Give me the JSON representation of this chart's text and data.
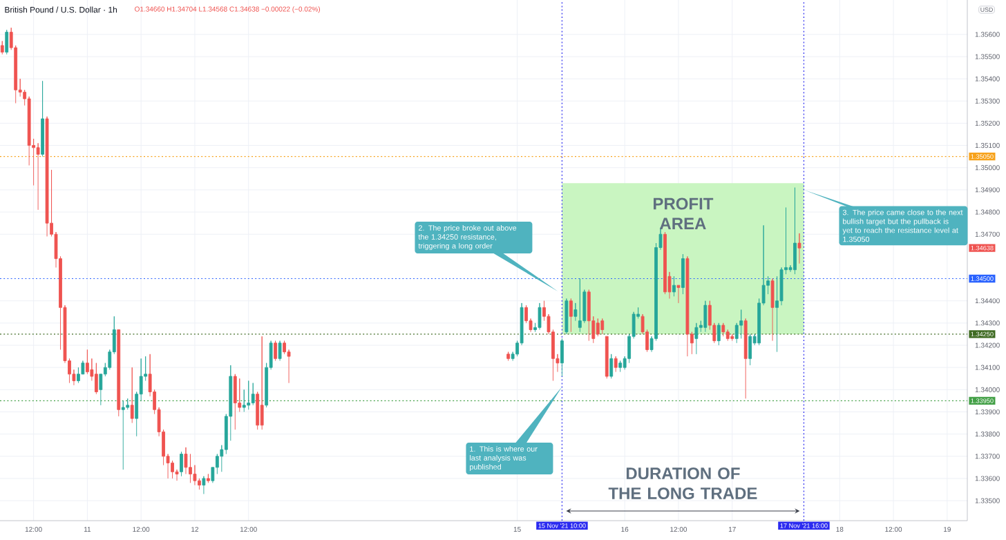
{
  "chart_data": {
    "type": "candlestick",
    "title": "British Pound / U.S. Dollar · 1h",
    "subtitle": "O1.34660 H1.34704 L1.34568 C1.34638 −0.00022 (−0.02%)",
    "x": [
      "2021-11-10T05:00",
      "2021-11-10T06:00",
      "2021-11-10T07:00",
      "2021-11-10T08:00",
      "2021-11-10T09:00",
      "2021-11-10T10:00",
      "2021-11-10T11:00",
      "2021-11-10T12:00",
      "2021-11-10T13:00",
      "2021-11-10T14:00",
      "2021-11-10T15:00",
      "2021-11-10T16:00",
      "2021-11-10T17:00",
      "2021-11-10T18:00",
      "2021-11-10T19:00",
      "2021-11-10T20:00",
      "2021-11-10T21:00",
      "2021-11-10T22:00",
      "2021-11-10T23:00",
      "2021-11-11T00:00",
      "2021-11-11T01:00",
      "2021-11-11T02:00",
      "2021-11-11T03:00",
      "2021-11-11T04:00",
      "2021-11-11T05:00",
      "2021-11-11T06:00",
      "2021-11-11T07:00",
      "2021-11-11T08:00",
      "2021-11-11T09:00",
      "2021-11-11T10:00",
      "2021-11-11T11:00",
      "2021-11-11T12:00",
      "2021-11-11T13:00",
      "2021-11-11T14:00",
      "2021-11-11T15:00",
      "2021-11-11T16:00",
      "2021-11-11T17:00",
      "2021-11-11T18:00",
      "2021-11-11T19:00",
      "2021-11-11T20:00",
      "2021-11-11T21:00",
      "2021-11-11T22:00",
      "2021-11-11T23:00",
      "2021-11-12T00:00",
      "2021-11-12T01:00",
      "2021-11-12T02:00",
      "2021-11-12T03:00",
      "2021-11-12T04:00",
      "2021-11-12T05:00",
      "2021-11-12T06:00",
      "2021-11-12T07:00",
      "2021-11-12T08:00",
      "2021-11-12T09:00",
      "2021-11-12T10:00",
      "2021-11-12T11:00",
      "2021-11-12T12:00",
      "2021-11-12T13:00",
      "2021-11-12T14:00",
      "2021-11-12T15:00",
      "2021-11-12T16:00",
      "2021-11-12T17:00",
      "2021-11-12T18:00",
      "2021-11-12T19:00",
      "2021-11-12T20:00",
      "2021-11-12T21:00",
      "2021-11-14T22:00",
      "2021-11-14T23:00",
      "2021-11-15T00:00",
      "2021-11-15T01:00",
      "2021-11-15T02:00",
      "2021-11-15T03:00",
      "2021-11-15T04:00",
      "2021-11-15T05:00",
      "2021-11-15T06:00",
      "2021-11-15T07:00",
      "2021-11-15T08:00",
      "2021-11-15T09:00",
      "2021-11-15T10:00",
      "2021-11-15T11:00",
      "2021-11-15T12:00",
      "2021-11-15T13:00",
      "2021-11-15T14:00",
      "2021-11-15T15:00",
      "2021-11-15T16:00",
      "2021-11-15T17:00",
      "2021-11-15T18:00",
      "2021-11-15T19:00",
      "2021-11-15T20:00",
      "2021-11-15T21:00",
      "2021-11-15T22:00",
      "2021-11-15T23:00",
      "2021-11-16T00:00",
      "2021-11-16T01:00",
      "2021-11-16T02:00",
      "2021-11-16T03:00",
      "2021-11-16T04:00",
      "2021-11-16T05:00",
      "2021-11-16T06:00",
      "2021-11-16T07:00",
      "2021-11-16T08:00",
      "2021-11-16T09:00",
      "2021-11-16T10:00",
      "2021-11-16T11:00",
      "2021-11-16T12:00",
      "2021-11-16T13:00",
      "2021-11-16T14:00",
      "2021-11-16T15:00",
      "2021-11-16T16:00",
      "2021-11-16T17:00",
      "2021-11-16T18:00",
      "2021-11-16T19:00",
      "2021-11-16T20:00",
      "2021-11-16T21:00",
      "2021-11-16T22:00",
      "2021-11-16T23:00",
      "2021-11-17T00:00",
      "2021-11-17T01:00",
      "2021-11-17T02:00",
      "2021-11-17T03:00",
      "2021-11-17T04:00",
      "2021-11-17T05:00",
      "2021-11-17T06:00",
      "2021-11-17T07:00",
      "2021-11-17T08:00",
      "2021-11-17T09:00",
      "2021-11-17T10:00",
      "2021-11-17T11:00",
      "2021-11-17T12:00",
      "2021-11-17T13:00",
      "2021-11-17T14:00",
      "2021-11-17T15:00"
    ],
    "ohlc": [
      [
        1.3555,
        1.3557,
        1.3551,
        1.3552
      ],
      [
        1.3552,
        1.3562,
        1.3551,
        1.3561
      ],
      [
        1.3561,
        1.3563,
        1.3553,
        1.3554
      ],
      [
        1.3554,
        1.3555,
        1.3529,
        1.3535
      ],
      [
        1.3535,
        1.354,
        1.3532,
        1.3534
      ],
      [
        1.3534,
        1.3535,
        1.3528,
        1.3531
      ],
      [
        1.3531,
        1.3532,
        1.3501,
        1.351
      ],
      [
        1.351,
        1.3513,
        1.3492,
        1.3509
      ],
      [
        1.3509,
        1.3511,
        1.3481,
        1.3506
      ],
      [
        1.3506,
        1.3539,
        1.3505,
        1.3522
      ],
      [
        1.3522,
        1.3523,
        1.3469,
        1.3475
      ],
      [
        1.3475,
        1.3499,
        1.3469,
        1.347
      ],
      [
        1.347,
        1.3471,
        1.3455,
        1.3459
      ],
      [
        1.3459,
        1.346,
        1.3418,
        1.3437
      ],
      [
        1.3437,
        1.3438,
        1.3412,
        1.3413
      ],
      [
        1.3413,
        1.3414,
        1.3403,
        1.3407
      ],
      [
        1.3407,
        1.3409,
        1.3402,
        1.3404
      ],
      [
        1.3404,
        1.341,
        1.3403,
        1.3407
      ],
      [
        1.3407,
        1.3413,
        1.3407,
        1.3412
      ],
      [
        1.3412,
        1.3418,
        1.3407,
        1.3408
      ],
      [
        1.3409,
        1.3414,
        1.3404,
        1.3406
      ],
      [
        1.3407,
        1.3412,
        1.3398,
        1.3399
      ],
      [
        1.34,
        1.3407,
        1.3393,
        1.3407
      ],
      [
        1.3407,
        1.3412,
        1.3406,
        1.341
      ],
      [
        1.341,
        1.3418,
        1.3409,
        1.3417
      ],
      [
        1.3417,
        1.3433,
        1.3416,
        1.3427
      ],
      [
        1.3427,
        1.3427,
        1.3388,
        1.3391
      ],
      [
        1.3391,
        1.3395,
        1.3364,
        1.3392
      ],
      [
        1.3392,
        1.3396,
        1.3391,
        1.3393
      ],
      [
        1.3393,
        1.341,
        1.3385,
        1.3387
      ],
      [
        1.3387,
        1.3399,
        1.3379,
        1.3398
      ],
      [
        1.3398,
        1.3414,
        1.3395,
        1.3406
      ],
      [
        1.3406,
        1.3415,
        1.3404,
        1.3407
      ],
      [
        1.3407,
        1.3416,
        1.3397,
        1.3399
      ],
      [
        1.3399,
        1.34,
        1.3389,
        1.3391
      ],
      [
        1.3391,
        1.3392,
        1.3379,
        1.3381
      ],
      [
        1.3381,
        1.3382,
        1.3366,
        1.337
      ],
      [
        1.337,
        1.3371,
        1.336,
        1.3367
      ],
      [
        1.3367,
        1.3368,
        1.336,
        1.3363
      ],
      [
        1.3363,
        1.3364,
        1.3359,
        1.3362
      ],
      [
        1.3363,
        1.3372,
        1.3361,
        1.3371
      ],
      [
        1.3371,
        1.3374,
        1.3362,
        1.3365
      ],
      [
        1.3365,
        1.3371,
        1.3358,
        1.3362
      ],
      [
        1.3362,
        1.3366,
        1.3357,
        1.3359
      ],
      [
        1.3359,
        1.336,
        1.3355,
        1.3357
      ],
      [
        1.3357,
        1.3361,
        1.3353,
        1.336
      ],
      [
        1.336,
        1.3362,
        1.3358,
        1.3359
      ],
      [
        1.3359,
        1.3365,
        1.3358,
        1.3365
      ],
      [
        1.3365,
        1.3371,
        1.3362,
        1.337
      ],
      [
        1.337,
        1.3375,
        1.3363,
        1.3373
      ],
      [
        1.3373,
        1.3389,
        1.3371,
        1.3388
      ],
      [
        1.3388,
        1.3411,
        1.3377,
        1.3406
      ],
      [
        1.3406,
        1.3407,
        1.3382,
        1.3394
      ],
      [
        1.3394,
        1.3405,
        1.339,
        1.3392
      ],
      [
        1.3392,
        1.34,
        1.339,
        1.3393
      ],
      [
        1.3393,
        1.3404,
        1.3391,
        1.3394
      ],
      [
        1.3394,
        1.3403,
        1.3393,
        1.3398
      ],
      [
        1.3398,
        1.3399,
        1.3382,
        1.3384
      ],
      [
        1.3393,
        1.3424,
        1.3382,
        1.3384
      ],
      [
        1.3393,
        1.3412,
        1.3392,
        1.341
      ],
      [
        1.341,
        1.3422,
        1.3409,
        1.3421
      ],
      [
        1.3421,
        1.3422,
        1.3413,
        1.3414
      ],
      [
        1.3414,
        1.3422,
        1.3413,
        1.3421
      ],
      [
        1.3421,
        1.3422,
        1.3416,
        1.3417
      ],
      [
        1.3417,
        1.3418,
        1.3403,
        1.3415
      ],
      [
        1.3416,
        1.3417,
        1.3413,
        1.3414
      ],
      [
        1.3414,
        1.3417,
        1.3413,
        1.3416
      ],
      [
        1.3416,
        1.3422,
        1.3415,
        1.3421
      ],
      [
        1.3421,
        1.3439,
        1.342,
        1.3437
      ],
      [
        1.3437,
        1.3438,
        1.343,
        1.3431
      ],
      [
        1.3431,
        1.3432,
        1.3426,
        1.3427
      ],
      [
        1.3427,
        1.343,
        1.3426,
        1.3428
      ],
      [
        1.3428,
        1.3439,
        1.3427,
        1.3437
      ],
      [
        1.3437,
        1.344,
        1.3431,
        1.3433
      ],
      [
        1.3433,
        1.3434,
        1.3425,
        1.3426
      ],
      [
        1.3426,
        1.3427,
        1.3404,
        1.3414
      ],
      [
        1.3414,
        1.3416,
        1.3408,
        1.3412
      ],
      [
        1.3412,
        1.3423,
        1.3406,
        1.3422
      ],
      [
        1.3426,
        1.3441,
        1.3425,
        1.344
      ],
      [
        1.344,
        1.3441,
        1.3426,
        1.3433
      ],
      [
        1.3433,
        1.3439,
        1.3431,
        1.3436
      ],
      [
        1.3428,
        1.345,
        1.3426,
        1.3431
      ],
      [
        1.3431,
        1.3445,
        1.343,
        1.3444
      ],
      [
        1.3444,
        1.3445,
        1.3422,
        1.3431
      ],
      [
        1.3431,
        1.3433,
        1.3421,
        1.3423
      ],
      [
        1.343,
        1.3432,
        1.3424,
        1.3425
      ],
      [
        1.3431,
        1.3432,
        1.3425,
        1.3427
      ],
      [
        1.3424,
        1.3424,
        1.3405,
        1.3406
      ],
      [
        1.3406,
        1.3416,
        1.3405,
        1.3414
      ],
      [
        1.3414,
        1.3415,
        1.3408,
        1.341
      ],
      [
        1.341,
        1.3413,
        1.3408,
        1.3412
      ],
      [
        1.341,
        1.3415,
        1.3409,
        1.3414
      ],
      [
        1.3414,
        1.3425,
        1.3412,
        1.3424
      ],
      [
        1.3424,
        1.3435,
        1.3423,
        1.3434
      ],
      [
        1.3433,
        1.3437,
        1.3432,
        1.3434
      ],
      [
        1.3433,
        1.3434,
        1.3425,
        1.3426
      ],
      [
        1.3426,
        1.3427,
        1.3417,
        1.3418
      ],
      [
        1.3418,
        1.3424,
        1.3417,
        1.3423
      ],
      [
        1.3423,
        1.3466,
        1.3422,
        1.3464
      ],
      [
        1.3464,
        1.3473,
        1.3463,
        1.347
      ],
      [
        1.347,
        1.3471,
        1.3443,
        1.3444
      ],
      [
        1.3451,
        1.3453,
        1.3441,
        1.3444
      ],
      [
        1.3444,
        1.3451,
        1.3442,
        1.3447
      ],
      [
        1.3447,
        1.3447,
        1.3439,
        1.3446
      ],
      [
        1.3446,
        1.3461,
        1.3443,
        1.3459
      ],
      [
        1.3459,
        1.346,
        1.3415,
        1.3425
      ],
      [
        1.3425,
        1.3426,
        1.3416,
        1.3421
      ],
      [
        1.3423,
        1.343,
        1.3416,
        1.3428
      ],
      [
        1.3428,
        1.3431,
        1.3426,
        1.3429
      ],
      [
        1.3428,
        1.344,
        1.3426,
        1.3438
      ],
      [
        1.3438,
        1.344,
        1.3427,
        1.3429
      ],
      [
        1.3429,
        1.343,
        1.3421,
        1.3422
      ],
      [
        1.3422,
        1.343,
        1.342,
        1.3429
      ],
      [
        1.3429,
        1.343,
        1.3424,
        1.3426
      ],
      [
        1.3426,
        1.3427,
        1.3422,
        1.3423
      ],
      [
        1.3424,
        1.3425,
        1.3422,
        1.3423
      ],
      [
        1.3423,
        1.343,
        1.3421,
        1.3429
      ],
      [
        1.3429,
        1.3436,
        1.3423,
        1.3431
      ],
      [
        1.3431,
        1.3432,
        1.3396,
        1.3414
      ],
      [
        1.3414,
        1.3425,
        1.3411,
        1.3424
      ],
      [
        1.3421,
        1.3425,
        1.342,
        1.3424
      ],
      [
        1.3421,
        1.3441,
        1.342,
        1.3439
      ],
      [
        1.3439,
        1.3474,
        1.3438,
        1.3447
      ],
      [
        1.3447,
        1.3451,
        1.3443,
        1.3449
      ],
      [
        1.3449,
        1.345,
        1.3422,
        1.3437
      ],
      [
        1.3437,
        1.3451,
        1.3417,
        1.344
      ],
      [
        1.344,
        1.3455,
        1.3438,
        1.3454
      ],
      [
        1.3454,
        1.3482,
        1.3452,
        1.3455
      ],
      [
        1.3454,
        1.3456,
        1.3453,
        1.3455
      ],
      [
        1.3454,
        1.3491,
        1.3452,
        1.3466
      ],
      [
        1.3466,
        1.34704,
        1.34568,
        1.34638
      ]
    ],
    "colors": [
      "#ef5350",
      "#26a69a",
      "#ef5350",
      "#ef5350",
      "#ef5350",
      "#ef5350",
      "#ef5350",
      "#ef5350",
      "#ef5350",
      "#26a69a",
      "#ef5350",
      "#ef5350",
      "#ef5350",
      "#ef5350",
      "#ef5350",
      "#ef5350",
      "#ef5350",
      "#26a69a",
      "#26a69a",
      "#ef5350",
      "#ef5350",
      "#ef5350",
      "#26a69a",
      "#26a69a",
      "#26a69a",
      "#26a69a",
      "#ef5350",
      "#26a69a",
      "#26a69a",
      "#ef5350",
      "#26a69a",
      "#26a69a",
      "#26a69a",
      "#ef5350",
      "#ef5350",
      "#ef5350",
      "#ef5350",
      "#ef5350",
      "#ef5350",
      "#ef5350",
      "#26a69a",
      "#ef5350",
      "#ef5350",
      "#ef5350",
      "#ef5350",
      "#26a69a",
      "#ef5350",
      "#26a69a",
      "#26a69a",
      "#26a69a",
      "#26a69a",
      "#26a69a",
      "#ef5350",
      "#ef5350",
      "#26a69a",
      "#26a69a",
      "#26a69a",
      "#ef5350",
      "#ef5350",
      "#26a69a",
      "#26a69a",
      "#ef5350",
      "#26a69a",
      "#ef5350",
      "#ef5350",
      "#ef5350",
      "#26a69a",
      "#26a69a",
      "#26a69a",
      "#ef5350",
      "#ef5350",
      "#26a69a",
      "#26a69a",
      "#ef5350",
      "#ef5350",
      "#ef5350",
      "#ef5350",
      "#26a69a",
      "#26a69a",
      "#ef5350",
      "#26a69a",
      "#26a69a",
      "#26a69a",
      "#ef5350",
      "#ef5350",
      "#ef5350",
      "#ef5350",
      "#ef5350",
      "#26a69a",
      "#ef5350",
      "#26a69a",
      "#26a69a",
      "#26a69a",
      "#26a69a",
      "#26a69a",
      "#ef5350",
      "#ef5350",
      "#26a69a",
      "#26a69a",
      "#26a69a",
      "#ef5350",
      "#ef5350",
      "#26a69a",
      "#ef5350",
      "#26a69a",
      "#ef5350",
      "#ef5350",
      "#26a69a",
      "#26a69a",
      "#26a69a",
      "#ef5350",
      "#ef5350",
      "#26a69a",
      "#ef5350",
      "#ef5350",
      "#ef5350",
      "#26a69a",
      "#26a69a",
      "#ef5350",
      "#26a69a",
      "#26a69a",
      "#26a69a",
      "#26a69a",
      "#26a69a",
      "#ef5350",
      "#26a69a",
      "#26a69a",
      "#26a69a",
      "#26a69a",
      "#26a69a",
      "#ef5350"
    ],
    "xlim": [
      "2021-11-10T04:30",
      "2021-11-19T04:30"
    ],
    "ylim": [
      1.3341,
      1.35755
    ],
    "xticks": [
      {
        "value": "2021-11-10T12:00",
        "label": "12:00"
      },
      {
        "value": "2021-11-11T00:00",
        "label": "11"
      },
      {
        "value": "2021-11-11T12:00",
        "label": "12:00"
      },
      {
        "value": "2021-11-12T00:00",
        "label": "12"
      },
      {
        "value": "2021-11-12T12:00",
        "label": "12:00"
      },
      {
        "value": "2021-11-15T00:00",
        "label": "15"
      },
      {
        "value": "2021-11-16T00:00",
        "label": "16"
      },
      {
        "value": "2021-11-16T12:00",
        "label": "12:00"
      },
      {
        "value": "2021-11-17T00:00",
        "label": "17"
      },
      {
        "value": "2021-11-18T00:00",
        "label": "18"
      },
      {
        "value": "2021-11-18T12:00",
        "label": "12:00"
      },
      {
        "value": "2021-11-19T00:00",
        "label": "19"
      }
    ],
    "yticks": [
      {
        "value": 1.335,
        "label": "1.33500"
      },
      {
        "value": 1.336,
        "label": "1.33600"
      },
      {
        "value": 1.337,
        "label": "1.33700"
      },
      {
        "value": 1.338,
        "label": "1.33800"
      },
      {
        "value": 1.339,
        "label": "1.33900"
      },
      {
        "value": 1.34,
        "label": "1.34000"
      },
      {
        "value": 1.341,
        "label": "1.34100"
      },
      {
        "value": 1.342,
        "label": "1.34200"
      },
      {
        "value": 1.343,
        "label": "1.34300"
      },
      {
        "value": 1.344,
        "label": "1.34400"
      },
      {
        "value": 1.347,
        "label": "1.34700"
      },
      {
        "value": 1.348,
        "label": "1.34800"
      },
      {
        "value": 1.349,
        "label": "1.34900"
      },
      {
        "value": 1.35,
        "label": "1.35000"
      },
      {
        "value": 1.351,
        "label": "1.35100"
      },
      {
        "value": 1.352,
        "label": "1.35200"
      },
      {
        "value": 1.353,
        "label": "1.35300"
      },
      {
        "value": 1.354,
        "label": "1.35400"
      },
      {
        "value": 1.355,
        "label": "1.35500"
      },
      {
        "value": 1.356,
        "label": "1.35600"
      }
    ],
    "grid": true,
    "bands": [
      {
        "axis": "y",
        "from": 1.3425,
        "to": 1.3493,
        "label": "PROFIT AREA",
        "color": "#c9f5c1"
      }
    ],
    "ref_lines": [
      {
        "axis": "x",
        "value": "2021-11-15T10:00",
        "label": "15 Nov '21  10:00",
        "color": "#2b2bf0",
        "line_style": "dotted"
      },
      {
        "axis": "x",
        "value": "2021-11-17T16:00",
        "label": "17 Nov '21  16:00",
        "color": "#2b2bf0",
        "line_style": "dotted"
      },
      {
        "axis": "y",
        "value": 1.3505,
        "label": "1.35050",
        "color": "#f7a21b",
        "line_style": "dotted"
      },
      {
        "axis": "y",
        "value": 1.345,
        "label": "1.34500",
        "color": "#2962ff",
        "line_style": "dotted"
      },
      {
        "axis": "y",
        "value": 1.3425,
        "label": "1.34250",
        "color": "#3f6b22",
        "line_style": "dotted"
      },
      {
        "axis": "y",
        "value": 1.3395,
        "label": "1.33950",
        "color": "#43a047",
        "line_style": "dotted"
      }
    ],
    "annotations": [
      "1. This is where our last analysis was published",
      "2. The price broke out above the 1.34250 resistance, triggering a long order",
      {
        "text": "3. The price came close to the next bullish target but the pullback is yet to reach the resistance level at 1.35050",
        "x": "2021-11-17T16:00",
        "y": 1.349
      },
      "DURATION OF THE LONG TRADE",
      "USD",
      "1.34638"
    ]
  }
}
